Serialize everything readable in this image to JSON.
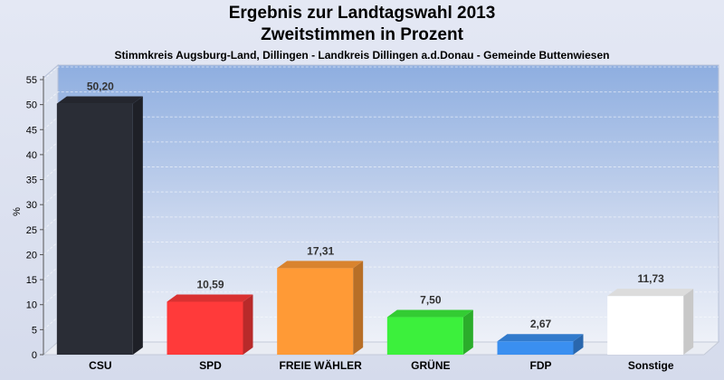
{
  "header": {
    "title_line1": "Ergebnis zur Landtagswahl 2013",
    "title_line2": "Zweitstimmen in Prozent",
    "subtitle": "Stimmkreis Augsburg-Land, Dillingen - Landkreis Dillingen a.d.Donau - Gemeinde Buttenwiesen"
  },
  "chart_data": {
    "type": "bar",
    "title": "Ergebnis zur Landtagswahl 2013 Zweitstimmen in Prozent",
    "ylabel": "%",
    "xlabel": "",
    "ylim": [
      0,
      55
    ],
    "yticks": [
      0,
      5,
      10,
      15,
      20,
      25,
      30,
      35,
      40,
      45,
      50,
      55
    ],
    "grid": true,
    "categories": [
      "CSU",
      "SPD",
      "FREIE WÄHLER",
      "GRÜNE",
      "FDP",
      "Sonstige"
    ],
    "values": [
      50.2,
      10.59,
      17.31,
      7.5,
      2.67,
      11.73
    ],
    "value_labels": [
      "50,20",
      "10,59",
      "17,31",
      "7,50",
      "2,67",
      "11,73"
    ],
    "colors": [
      "#2a2d36",
      "#ff3a3a",
      "#ff9a36",
      "#3cf03c",
      "#3a8ff0",
      "#ffffff"
    ]
  }
}
